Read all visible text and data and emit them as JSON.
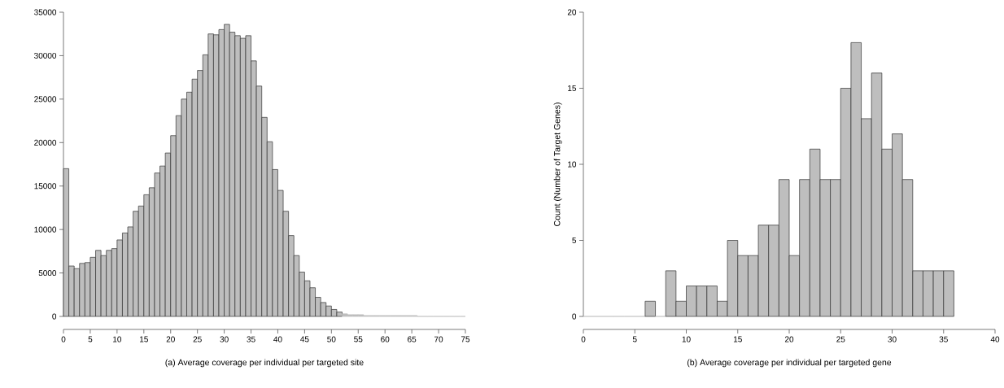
{
  "chart_data": [
    {
      "type": "histogram",
      "xlabel": "(a) Average coverage per individual per targeted site",
      "color": "#bebebe",
      "bins": [
        0,
        1,
        2,
        3,
        4,
        5,
        6,
        7,
        8,
        9,
        10,
        11,
        12,
        13,
        14,
        15,
        16,
        17,
        18,
        19,
        20,
        21,
        22,
        23,
        24,
        25,
        26,
        27,
        28,
        29,
        30,
        31,
        32,
        33,
        34,
        35,
        36,
        37,
        38,
        39,
        40,
        41,
        42,
        43,
        44,
        45,
        46,
        47,
        48,
        49,
        50,
        51,
        52,
        53,
        54,
        55,
        56,
        57,
        58,
        59,
        60,
        61,
        62,
        63,
        64,
        65,
        66,
        67,
        68,
        69,
        70,
        71,
        72,
        73,
        74,
        75
      ],
      "values": [
        17000,
        5800,
        5500,
        6100,
        6200,
        6800,
        7600,
        7000,
        7600,
        7800,
        8800,
        9600,
        10300,
        12100,
        12700,
        14000,
        14800,
        16500,
        17300,
        18800,
        20800,
        23100,
        25000,
        25800,
        27300,
        28300,
        30100,
        32500,
        32400,
        33000,
        33600,
        32700,
        32300,
        32000,
        32300,
        29400,
        26500,
        22900,
        20100,
        16900,
        14500,
        12100,
        9300,
        7000,
        5100,
        4100,
        3300,
        2200,
        1600,
        1200,
        800,
        500,
        300,
        200,
        200,
        200,
        100,
        100,
        100,
        100,
        100,
        100,
        100,
        100,
        100,
        100,
        0,
        0,
        0,
        0,
        0,
        0,
        0,
        0,
        0
      ],
      "xlim": [
        0,
        75
      ],
      "xticks": [
        0,
        5,
        10,
        15,
        20,
        25,
        30,
        35,
        40,
        45,
        50,
        55,
        60,
        65,
        70,
        75
      ],
      "ylim": [
        0,
        35000
      ],
      "yticks": [
        0,
        5000,
        10000,
        15000,
        20000,
        25000,
        30000,
        35000
      ]
    },
    {
      "type": "histogram",
      "xlabel": "(b) Average coverage per individual per targeted gene",
      "ylabel": "Count (Number of Target Genes)",
      "color": "#bebebe",
      "bins": [
        0,
        1,
        2,
        3,
        4,
        5,
        6,
        7,
        8,
        9,
        10,
        11,
        12,
        13,
        14,
        15,
        16,
        17,
        18,
        19,
        20,
        21,
        22,
        23,
        24,
        25,
        26,
        27,
        28,
        29,
        30,
        31,
        32,
        33,
        34,
        35,
        36
      ],
      "values": [
        0,
        0,
        0,
        0,
        0,
        0,
        1,
        0,
        3,
        1,
        2,
        2,
        2,
        1,
        5,
        4,
        4,
        6,
        6,
        9,
        4,
        9,
        11,
        9,
        9,
        15,
        18,
        13,
        16,
        11,
        12,
        9,
        3,
        3,
        3,
        3
      ],
      "xlim": [
        0,
        40
      ],
      "xticks": [
        0,
        5,
        10,
        15,
        20,
        25,
        30,
        35,
        40
      ],
      "ylim": [
        0,
        20
      ],
      "yticks": [
        0,
        5,
        10,
        15,
        20
      ]
    }
  ]
}
